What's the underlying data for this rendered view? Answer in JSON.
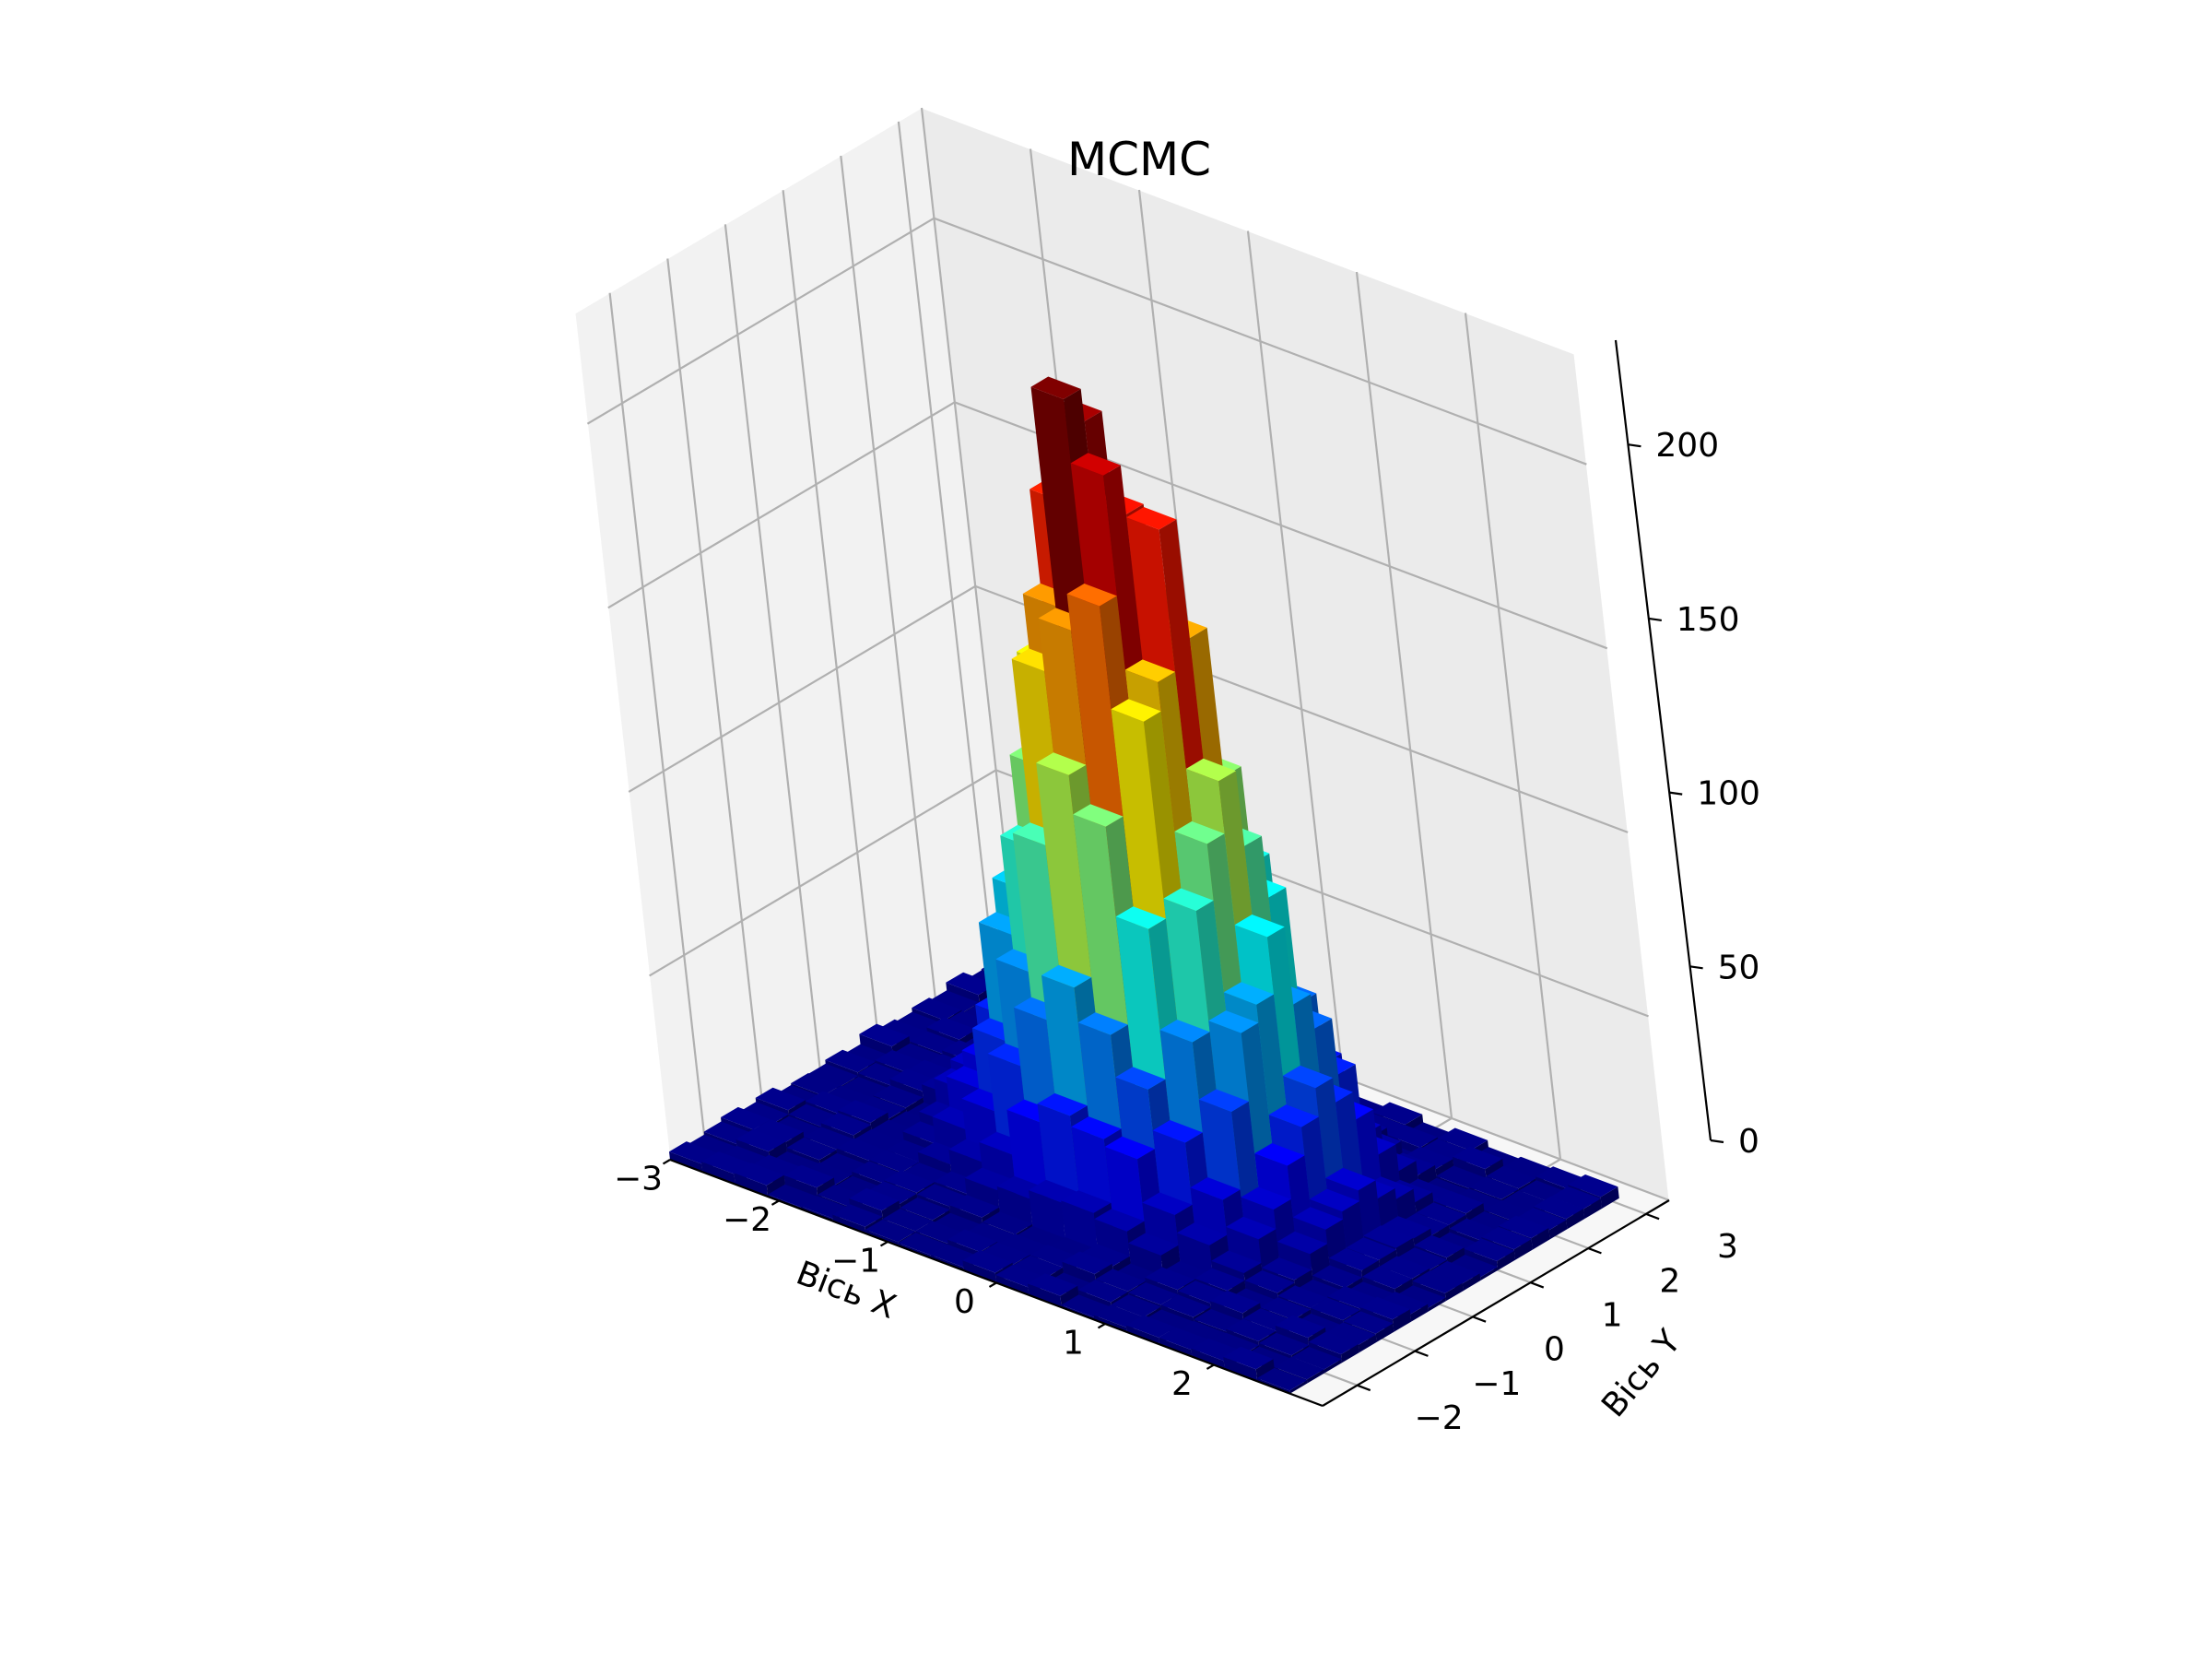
{
  "chart_data": {
    "type": "bar3d",
    "title": "MCMC",
    "xlabel": "Вісь X",
    "ylabel": "Вісь Y",
    "zlabel": "",
    "xlim": [
      -3.0,
      3.0
    ],
    "ylim": [
      -2.6,
      3.4
    ],
    "zlim": [
      0,
      230
    ],
    "xticks": [
      -3,
      -2,
      -1,
      0,
      1,
      2
    ],
    "yticks": [
      -2,
      -1,
      0,
      1,
      2,
      3
    ],
    "zticks": [
      0,
      50,
      100,
      150,
      200
    ],
    "xtick_labels": [
      "−3",
      "−2",
      "−1",
      "0",
      "1",
      "2"
    ],
    "ytick_labels": [
      "−2",
      "−1",
      "0",
      "1",
      "2",
      "3"
    ],
    "ztick_labels": [
      "0",
      "50",
      "100",
      "150",
      "200"
    ],
    "colormap": "jet",
    "bins": {
      "x_edges": [
        -3.0,
        2.7
      ],
      "y_edges": [
        -2.6,
        3.1
      ],
      "count_x": 19,
      "count_y": 19,
      "center_x": 0.0,
      "center_y": 0.5,
      "peak_count": 215
    },
    "grid": true
  }
}
